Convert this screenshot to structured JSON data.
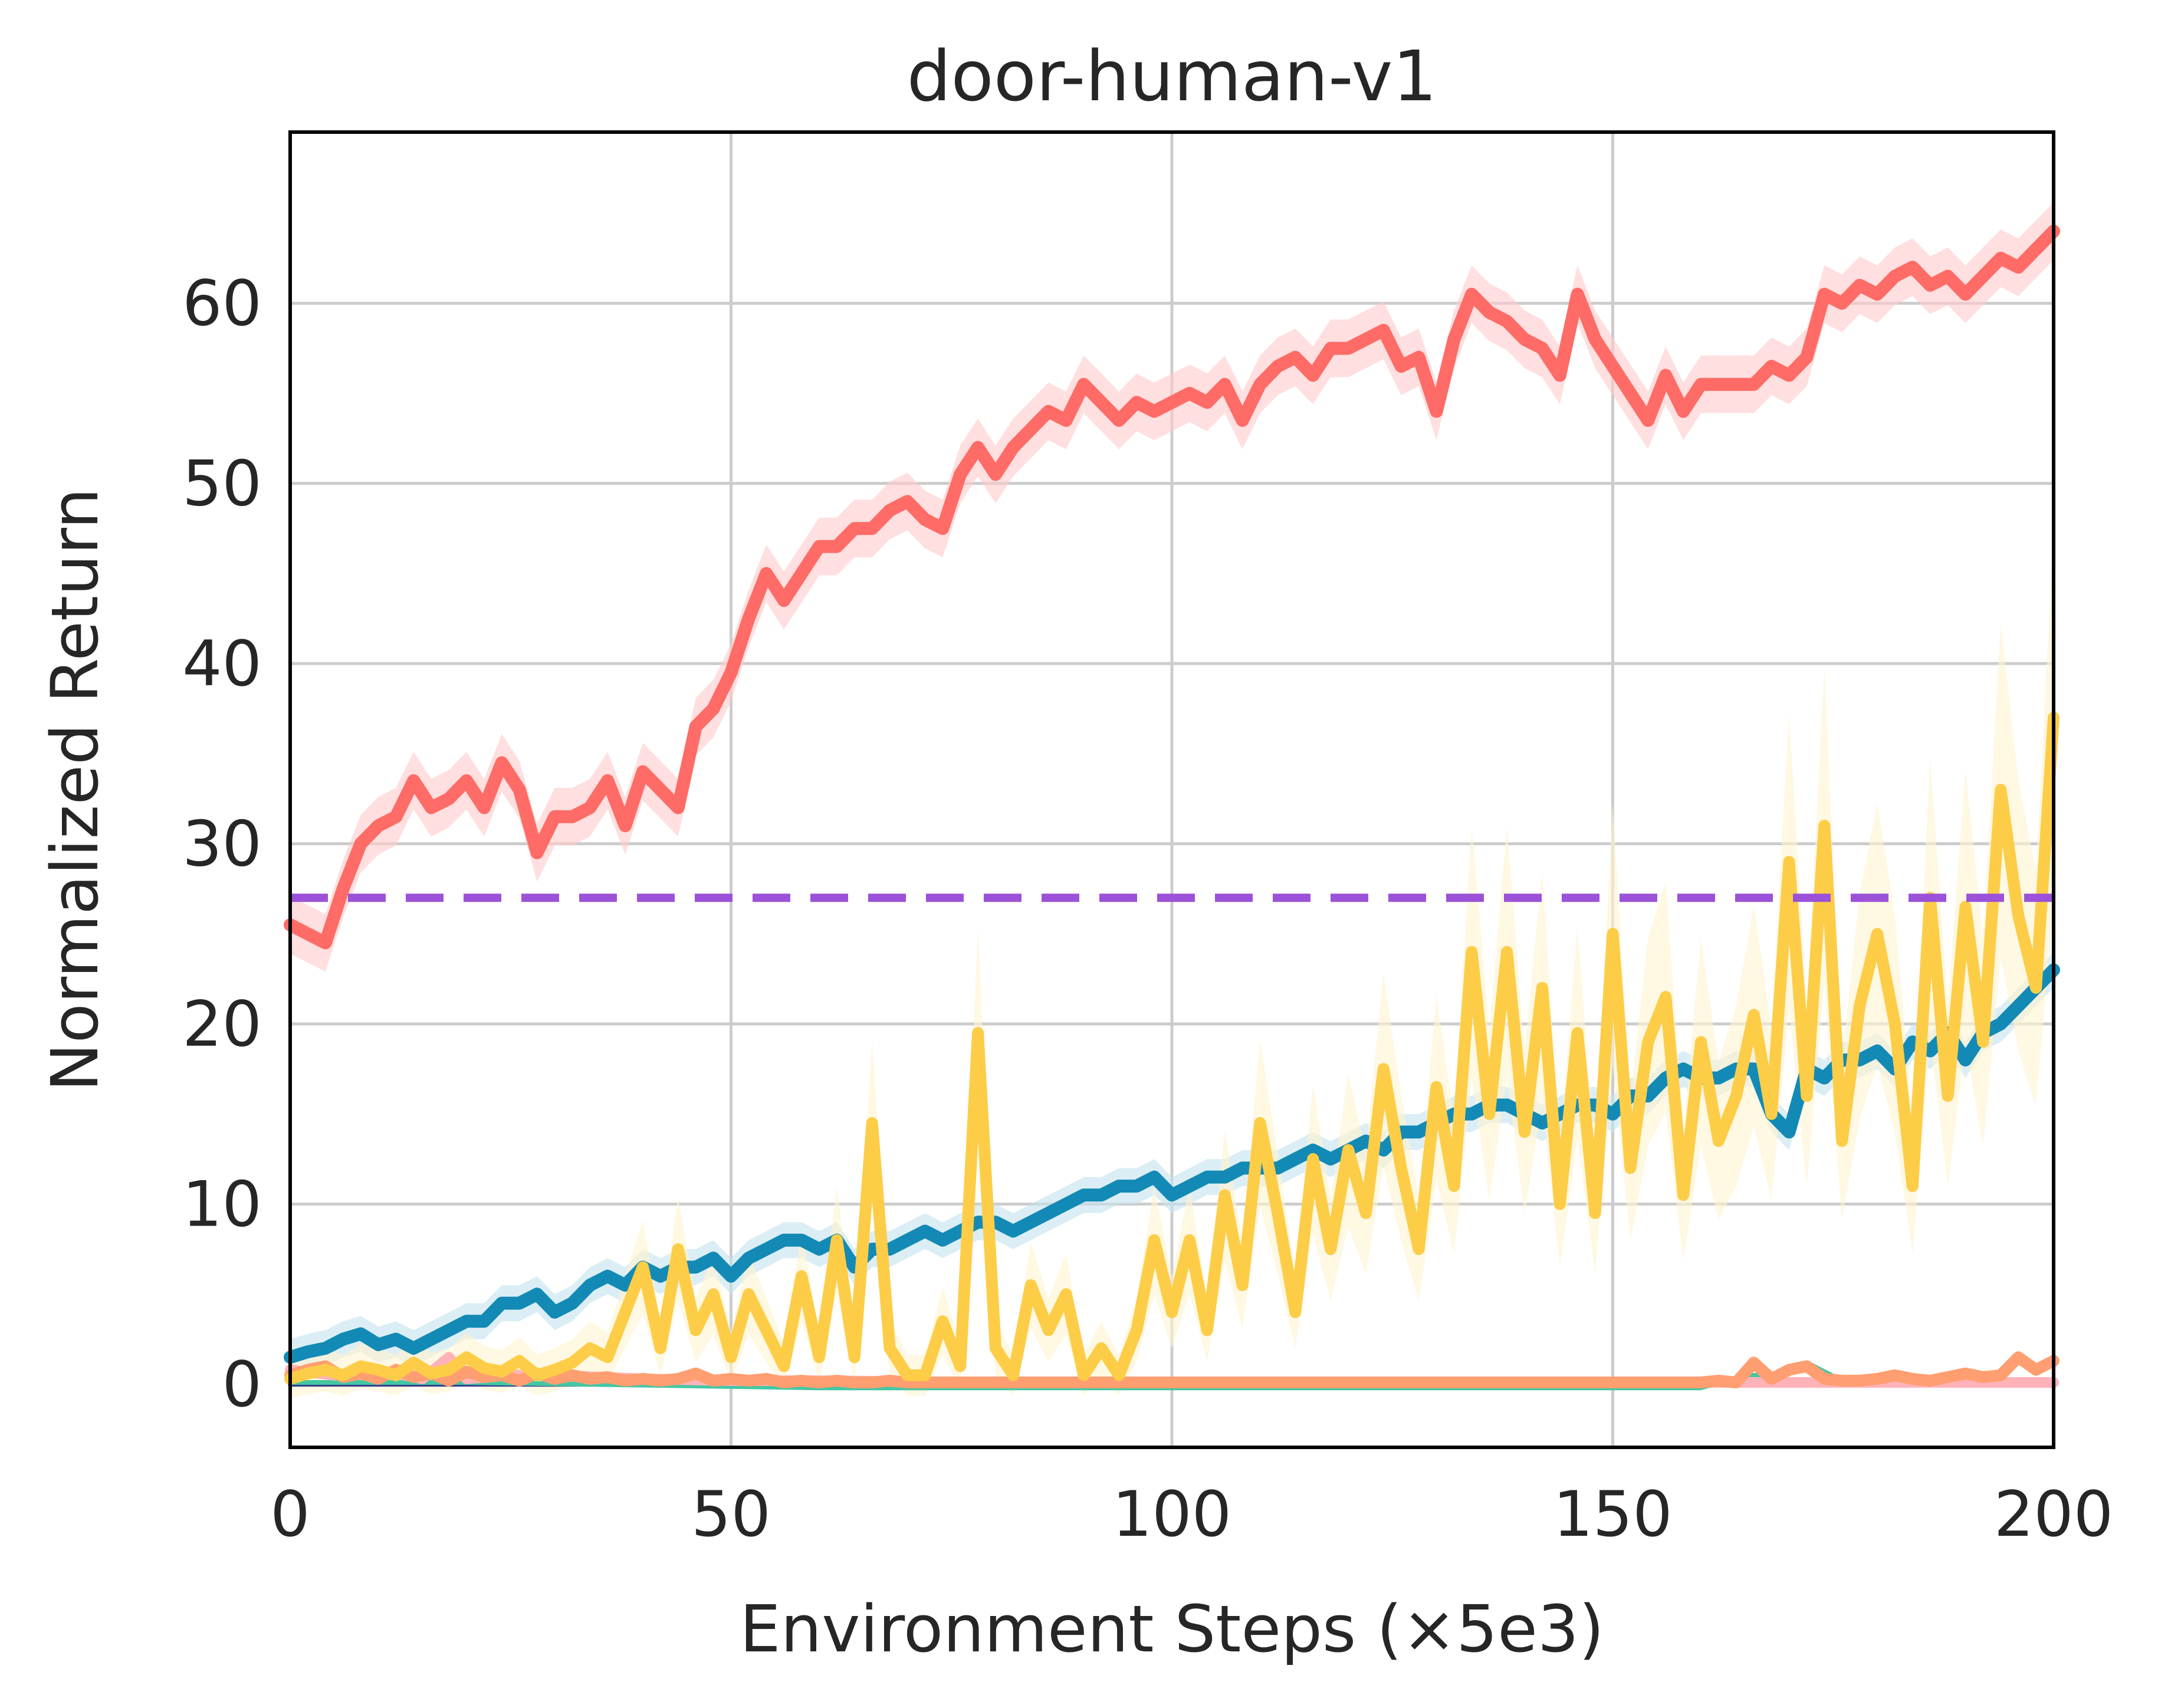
{
  "chart_data": {
    "type": "line",
    "title": "door-human-v1",
    "xlabel": "Environment Steps (×5e3)",
    "ylabel": "Normalized Return",
    "xlim": [
      0,
      200
    ],
    "ylim": [
      -3.5,
      69.5
    ],
    "xticks": [
      0,
      50,
      100,
      150,
      200
    ],
    "xtick_labels": [
      "0",
      "50",
      "100",
      "150",
      "200"
    ],
    "yticks": [
      0,
      10,
      20,
      30,
      40,
      50,
      60
    ],
    "ytick_labels": [
      "0",
      "10",
      "20",
      "30",
      "40",
      "50",
      "60"
    ],
    "grid": true,
    "legend": "none",
    "reference_line": {
      "y": 27,
      "style": "dashed",
      "color": "#9b51d8"
    },
    "series": [
      {
        "color": "#ff6b66",
        "band_color": "#ffc9c9",
        "x": [
          0,
          2,
          4,
          6,
          8,
          10,
          12,
          14,
          16,
          18,
          20,
          22,
          24,
          26,
          28,
          30,
          32,
          34,
          36,
          38,
          40,
          42,
          44,
          46,
          48,
          50,
          52,
          54,
          56,
          58,
          60,
          62,
          64,
          66,
          68,
          70,
          72,
          74,
          76,
          78,
          80,
          82,
          84,
          86,
          88,
          90,
          92,
          94,
          96,
          98,
          100,
          102,
          104,
          106,
          108,
          110,
          112,
          114,
          116,
          118,
          120,
          122,
          124,
          126,
          128,
          130,
          132,
          134,
          136,
          138,
          140,
          142,
          144,
          146,
          148,
          150,
          152,
          154,
          156,
          158,
          160,
          162,
          164,
          166,
          168,
          170,
          172,
          174,
          176,
          178,
          180,
          182,
          184,
          186,
          188,
          190,
          192,
          194,
          196,
          198,
          200
        ],
        "y": [
          25.5,
          25,
          24.5,
          27.5,
          30,
          31,
          31.5,
          33.5,
          32,
          32.5,
          33.5,
          32,
          34.5,
          33,
          29.5,
          31.5,
          31.5,
          32,
          33.5,
          31,
          34,
          33,
          32,
          36.5,
          37.5,
          39.5,
          42.5,
          45,
          43.5,
          45,
          46.5,
          46.5,
          47.5,
          47.5,
          48.5,
          49,
          48,
          47.5,
          50.5,
          52,
          50.5,
          52,
          53,
          54,
          53.5,
          55.5,
          54.5,
          53.5,
          54.5,
          54,
          54.5,
          55,
          54.5,
          55.5,
          53.5,
          55.5,
          56.5,
          57,
          56,
          57.5,
          57.5,
          58,
          58.5,
          56.5,
          57,
          54,
          58,
          60.5,
          59.5,
          59,
          58,
          57.5,
          56,
          60.5,
          58,
          56.5,
          55,
          53.5,
          56,
          54,
          55.5,
          55.5,
          55.5,
          55.5,
          56.5,
          56,
          57,
          60.5,
          60,
          61,
          60.5,
          61.5,
          62,
          61,
          61.5,
          60.5,
          61.5,
          62.5,
          62,
          63,
          64
        ]
      },
      {
        "color": "#138ab5",
        "band_color": "#c5e3ee",
        "x": [
          0,
          2,
          4,
          6,
          8,
          10,
          12,
          14,
          16,
          18,
          20,
          22,
          24,
          26,
          28,
          30,
          32,
          34,
          36,
          38,
          40,
          42,
          44,
          46,
          48,
          50,
          52,
          54,
          56,
          58,
          60,
          62,
          64,
          66,
          68,
          70,
          72,
          74,
          76,
          78,
          80,
          82,
          84,
          86,
          88,
          90,
          92,
          94,
          96,
          98,
          100,
          102,
          104,
          106,
          108,
          110,
          112,
          114,
          116,
          118,
          120,
          122,
          124,
          126,
          128,
          130,
          132,
          134,
          136,
          138,
          140,
          142,
          144,
          146,
          148,
          150,
          152,
          154,
          156,
          158,
          160,
          162,
          164,
          166,
          168,
          170,
          172,
          174,
          176,
          178,
          180,
          182,
          184,
          186,
          188,
          190,
          192,
          194,
          196,
          198,
          200
        ],
        "y": [
          1.5,
          1.8,
          2,
          2.5,
          2.8,
          2.2,
          2.5,
          2,
          2.5,
          3,
          3.5,
          3.5,
          4.5,
          4.5,
          5,
          4,
          4.5,
          5.5,
          6,
          5.5,
          6.5,
          6,
          6.5,
          6.5,
          7,
          6,
          7,
          7.5,
          8,
          8,
          7.5,
          8,
          6.5,
          7.5,
          7.5,
          8,
          8.5,
          8,
          8.5,
          9,
          9,
          8.5,
          9,
          9.5,
          10,
          10.5,
          10.5,
          11,
          11,
          11.5,
          10.5,
          11,
          11.5,
          11.5,
          12,
          12,
          12,
          12.5,
          13,
          12.5,
          13,
          13.5,
          13,
          14,
          14,
          14.5,
          15,
          15,
          15.5,
          15.5,
          15,
          14.5,
          15,
          15.5,
          15.5,
          15,
          16,
          16,
          17,
          17.5,
          17,
          17,
          17.5,
          17.5,
          15,
          14,
          17.5,
          17,
          18,
          18,
          18.5,
          17.5,
          19,
          18.5,
          19.5,
          18,
          19.5,
          20,
          21,
          22,
          23
        ]
      },
      {
        "color": "#fdcd48",
        "band_color": "#fff3cf",
        "x": [
          0,
          2,
          4,
          6,
          8,
          10,
          12,
          14,
          16,
          18,
          20,
          22,
          24,
          26,
          28,
          30,
          32,
          34,
          36,
          38,
          40,
          42,
          44,
          46,
          48,
          50,
          52,
          54,
          56,
          58,
          60,
          62,
          64,
          66,
          68,
          70,
          72,
          74,
          76,
          78,
          80,
          82,
          84,
          86,
          88,
          90,
          92,
          94,
          96,
          98,
          100,
          102,
          104,
          106,
          108,
          110,
          112,
          114,
          116,
          118,
          120,
          122,
          124,
          126,
          128,
          130,
          132,
          134,
          136,
          138,
          140,
          142,
          144,
          146,
          148,
          150,
          152,
          154,
          156,
          158,
          160,
          162,
          164,
          166,
          168,
          170,
          172,
          174,
          176,
          178,
          180,
          182,
          184,
          186,
          188,
          190,
          192,
          194,
          196,
          198,
          200
        ],
        "y": [
          0.3,
          0.6,
          0.8,
          0.5,
          1,
          0.8,
          0.5,
          1.2,
          0.6,
          0.8,
          1.5,
          0.9,
          0.7,
          1.3,
          0.5,
          0.8,
          1.2,
          2,
          1.5,
          4,
          6.5,
          2,
          7.5,
          3,
          5,
          1.5,
          5,
          3,
          1,
          6,
          1.5,
          8,
          1.5,
          14.5,
          2,
          0.5,
          0.5,
          3.5,
          1,
          19.5,
          2,
          0.5,
          5.5,
          3,
          5,
          0.5,
          2,
          0.5,
          3,
          8,
          4,
          8,
          3,
          10.5,
          5.5,
          14.5,
          9.5,
          4,
          12.5,
          7.5,
          13,
          9.5,
          17.5,
          12,
          7.5,
          16.5,
          11,
          24,
          15,
          24,
          14,
          22,
          10,
          19.5,
          9.5,
          25,
          12,
          19,
          21.5,
          10.5,
          19,
          13.5,
          16,
          20.5,
          15,
          29,
          16,
          31,
          13.5,
          21,
          25,
          20,
          11,
          27,
          16,
          26.5,
          19,
          33,
          26,
          22,
          37
        ]
      },
      {
        "color": "#ffb3b8",
        "x": [
          0,
          5,
          10,
          15,
          18,
          20,
          25,
          30,
          40,
          50,
          60,
          80,
          100,
          120,
          140,
          160,
          180,
          200
        ],
        "y": [
          0.8,
          0.5,
          0.8,
          0.3,
          1.5,
          0.3,
          0.5,
          0.5,
          0.3,
          0.2,
          0.2,
          0.1,
          0.1,
          0.1,
          0.1,
          0.1,
          0.1,
          0.1
        ]
      },
      {
        "color": "#3a3f8f",
        "x": [
          0,
          200
        ],
        "y": [
          0,
          0
        ]
      },
      {
        "color": "#45c7a2",
        "x": [
          0,
          20,
          60,
          100,
          140,
          160,
          165,
          168,
          172,
          176,
          180,
          200
        ],
        "y": [
          0.1,
          0.1,
          -0.2,
          -0.2,
          -0.2,
          -0.2,
          0.5,
          0.5,
          1.2,
          0.2,
          0.1,
          0.2
        ]
      },
      {
        "color": "#ff9e70",
        "x": [
          0,
          2,
          4,
          6,
          8,
          10,
          12,
          14,
          16,
          18,
          20,
          22,
          24,
          26,
          28,
          30,
          32,
          34,
          36,
          38,
          40,
          42,
          44,
          46,
          48,
          50,
          52,
          54,
          56,
          58,
          60,
          62,
          64,
          66,
          68,
          70,
          72,
          74,
          76,
          78,
          80,
          82,
          84,
          86,
          88,
          90,
          92,
          94,
          96,
          98,
          100,
          102,
          104,
          106,
          108,
          110,
          112,
          114,
          116,
          118,
          120,
          122,
          124,
          126,
          128,
          130,
          132,
          134,
          136,
          138,
          140,
          142,
          144,
          146,
          148,
          150,
          152,
          154,
          156,
          158,
          160,
          162,
          164,
          166,
          168,
          170,
          172,
          174,
          176,
          178,
          180,
          182,
          184,
          186,
          188,
          190,
          192,
          194,
          196,
          198,
          200
        ],
        "y": [
          0.5,
          0.8,
          1,
          0.4,
          0.6,
          0.3,
          0.8,
          0.4,
          0.6,
          0.2,
          0.7,
          0.4,
          0.5,
          0.2,
          0.6,
          0.3,
          0.5,
          0.3,
          0.4,
          0.2,
          0.3,
          0.2,
          0.3,
          0.6,
          0.2,
          0.3,
          0.2,
          0.3,
          0.1,
          0.2,
          0.1,
          0.2,
          0.1,
          0.1,
          0.2,
          0.1,
          0.1,
          0.1,
          0.1,
          0.1,
          0.1,
          0.1,
          0.1,
          0.1,
          0.1,
          0.1,
          0.1,
          0.1,
          0.1,
          0.1,
          0.1,
          0.1,
          0.1,
          0.1,
          0.1,
          0.1,
          0.1,
          0.1,
          0.1,
          0.1,
          0.1,
          0.1,
          0.1,
          0.1,
          0.1,
          0.1,
          0.1,
          0.1,
          0.1,
          0.1,
          0.1,
          0.1,
          0.1,
          0.1,
          0.1,
          0.1,
          0.1,
          0.1,
          0.1,
          0.1,
          0.1,
          0.2,
          0.1,
          1.2,
          0.3,
          0.8,
          1,
          0.3,
          0.2,
          0.2,
          0.3,
          0.5,
          0.3,
          0.2,
          0.4,
          0.6,
          0.4,
          0.5,
          1.5,
          0.8,
          1.3
        ]
      }
    ]
  }
}
